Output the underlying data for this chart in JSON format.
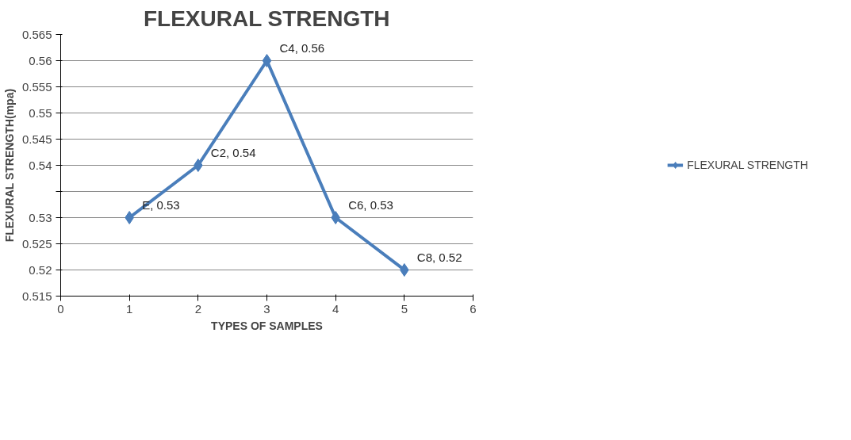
{
  "chart_data": {
    "type": "line",
    "title": "FLEXURAL STRENGTH",
    "xlabel": "TYPES OF SAMPLES",
    "ylabel": "FLEXURAL STRENGTH(mpa)",
    "x": [
      1,
      2,
      3,
      4,
      5
    ],
    "series": [
      {
        "name": "FLEXURAL STRENGTH",
        "color": "#4a7ebb",
        "values": [
          0.53,
          0.54,
          0.56,
          0.53,
          0.52
        ],
        "value_labels": [
          "E, 0.53",
          "C2, 0.54",
          "C4, 0.56",
          "C6, 0.53",
          "C8, 0.52"
        ]
      }
    ],
    "xlim": [
      0,
      6
    ],
    "xticks": [
      0,
      1,
      2,
      3,
      4,
      5,
      6
    ],
    "ylim": [
      0.515,
      0.565
    ],
    "yticks": [
      0.515,
      0.52,
      0.525,
      0.53,
      {
        "value": 0.535,
        "label": null
      },
      0.54,
      0.545,
      0.55,
      0.555,
      0.56,
      0.565
    ],
    "grid": "y",
    "legend": "right",
    "marker": "diamond",
    "line_style": "solid"
  }
}
